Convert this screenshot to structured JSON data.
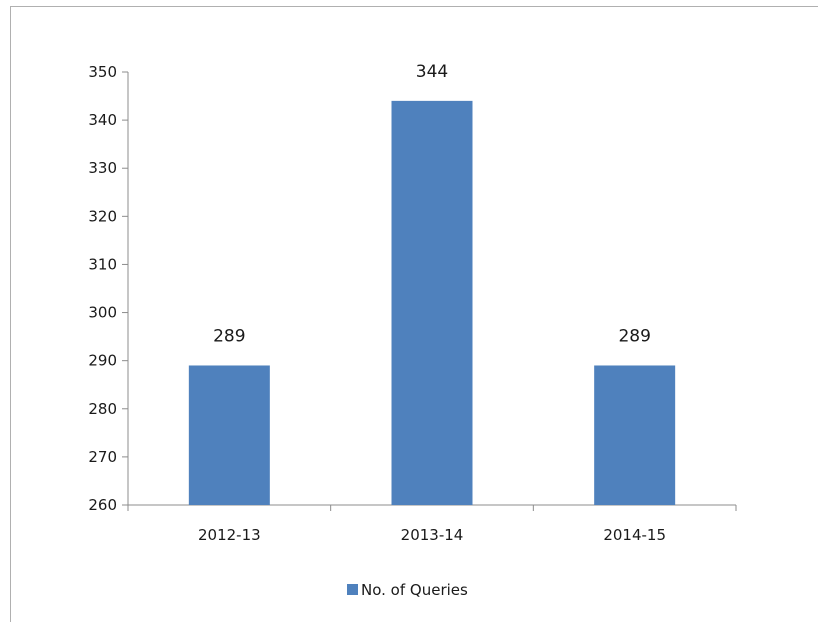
{
  "chart_data": {
    "type": "bar",
    "categories": [
      "2012-13",
      "2013-14",
      "2014-15"
    ],
    "series": [
      {
        "name": "No. of Queries",
        "values": [
          289,
          344,
          289
        ],
        "color": "#4f81bd"
      }
    ],
    "data_labels": [
      "289",
      "344",
      "289"
    ],
    "y_ticks": [
      "260",
      "270",
      "280",
      "290",
      "300",
      "310",
      "320",
      "330",
      "340",
      "350"
    ],
    "ylim": [
      260,
      350
    ],
    "xlabel": "",
    "ylabel": "",
    "grid": false,
    "legend_position": "bottom"
  }
}
